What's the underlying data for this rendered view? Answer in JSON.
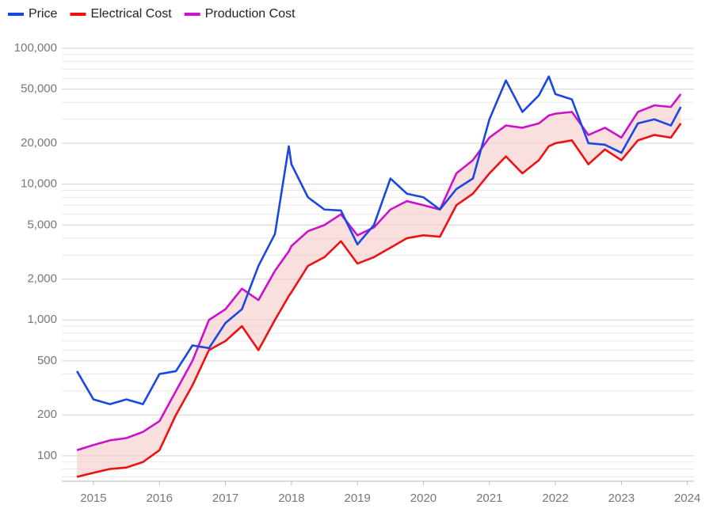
{
  "chart_data": {
    "type": "line",
    "log_scale": true,
    "grid": true,
    "minor_grid": true,
    "legend": "top-left",
    "x": [
      2014.75,
      2015,
      2015.25,
      2015.5,
      2015.75,
      2016,
      2016.25,
      2016.5,
      2016.75,
      2017,
      2017.25,
      2017.5,
      2017.75,
      2017.96,
      2018,
      2018.25,
      2018.5,
      2018.75,
      2019,
      2019.25,
      2019.5,
      2019.75,
      2020,
      2020.25,
      2020.5,
      2020.75,
      2021,
      2021.25,
      2021.5,
      2021.75,
      2021.9,
      2022,
      2022.25,
      2022.5,
      2022.75,
      2023,
      2023.25,
      2023.5,
      2023.75,
      2023.9
    ],
    "series": [
      {
        "name": "Price",
        "color": "#1a47e0",
        "values": [
          420,
          260,
          240,
          260,
          240,
          400,
          420,
          650,
          620,
          950,
          1200,
          2500,
          4300,
          19000,
          14000,
          8000,
          6500,
          6400,
          3600,
          5000,
          11000,
          8500,
          8000,
          6500,
          9200,
          11000,
          30000,
          58000,
          34000,
          45000,
          62000,
          46000,
          42000,
          20000,
          19500,
          17000,
          28000,
          30000,
          27000,
          37000
        ]
      },
      {
        "name": "Electrical Cost",
        "color": "#ee1111",
        "values": [
          70,
          75,
          80,
          82,
          90,
          110,
          200,
          330,
          600,
          700,
          900,
          600,
          1000,
          1500,
          1600,
          2500,
          2900,
          3800,
          2600,
          2900,
          3400,
          4000,
          4200,
          4100,
          7000,
          8500,
          12000,
          16000,
          12000,
          15000,
          19000,
          20000,
          21000,
          14000,
          18000,
          15000,
          21000,
          23000,
          22000,
          28000
        ]
      },
      {
        "name": "Production Cost",
        "color": "#cc11cc",
        "values": [
          110,
          120,
          130,
          135,
          150,
          180,
          300,
          500,
          1000,
          1200,
          1700,
          1400,
          2300,
          3200,
          3500,
          4500,
          5000,
          6000,
          4200,
          4800,
          6500,
          7500,
          7000,
          6500,
          12000,
          15000,
          22000,
          27000,
          26000,
          28000,
          32000,
          33000,
          34000,
          23000,
          26000,
          22000,
          34000,
          38000,
          37000,
          46000
        ]
      }
    ],
    "band_color": "#f6c9c9",
    "xlim": [
      2014.52,
      2024.1
    ],
    "xticks": [
      2015,
      2016,
      2017,
      2018,
      2019,
      2020,
      2021,
      2022,
      2023,
      2024
    ],
    "ylim": [
      65,
      100000
    ],
    "yticks": [
      100,
      200,
      500,
      {
        "value": 1000,
        "label": "1,000"
      },
      {
        "value": 2000,
        "label": "2,000"
      },
      {
        "value": 5000,
        "label": "5,000"
      },
      {
        "value": 10000,
        "label": "10,000"
      },
      {
        "value": 20000,
        "label": "20,000"
      },
      {
        "value": 50000,
        "label": "50,000"
      },
      {
        "value": 100000,
        "label": "100,000"
      }
    ]
  }
}
